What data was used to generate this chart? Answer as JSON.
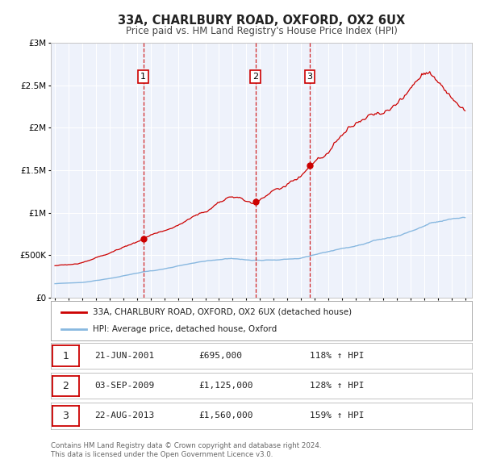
{
  "title": "33A, CHARLBURY ROAD, OXFORD, OX2 6UX",
  "subtitle": "Price paid vs. HM Land Registry's House Price Index (HPI)",
  "xlim": [
    1994.7,
    2025.5
  ],
  "ylim": [
    0,
    3000000
  ],
  "yticks": [
    0,
    500000,
    1000000,
    1500000,
    2000000,
    2500000,
    3000000
  ],
  "ytick_labels": [
    "£0",
    "£500K",
    "£1M",
    "£1.5M",
    "£2M",
    "£2.5M",
    "£3M"
  ],
  "xticks": [
    1995,
    1996,
    1997,
    1998,
    1999,
    2000,
    2001,
    2002,
    2003,
    2004,
    2005,
    2006,
    2007,
    2008,
    2009,
    2010,
    2011,
    2012,
    2013,
    2014,
    2015,
    2016,
    2017,
    2018,
    2019,
    2020,
    2021,
    2022,
    2023,
    2024,
    2025
  ],
  "bg_color": "#eef2fb",
  "grid_color": "#ffffff",
  "red_line_color": "#cc0000",
  "blue_line_color": "#88b8e0",
  "vline_color": "#cc0000",
  "marker_color": "#cc0000",
  "label_border_color": "#cc0000",
  "transactions": [
    {
      "num": 1,
      "year": 2001.47,
      "price": 695000,
      "label": "21-JUN-2001",
      "amount": "£695,000",
      "hpi_text": "118% ↑ HPI"
    },
    {
      "num": 2,
      "year": 2009.67,
      "price": 1125000,
      "label": "03-SEP-2009",
      "amount": "£1,125,000",
      "hpi_text": "128% ↑ HPI"
    },
    {
      "num": 3,
      "year": 2013.64,
      "price": 1560000,
      "label": "22-AUG-2013",
      "amount": "£1,560,000",
      "hpi_text": "159% ↑ HPI"
    }
  ],
  "legend_line1": "33A, CHARLBURY ROAD, OXFORD, OX2 6UX (detached house)",
  "legend_line2": "HPI: Average price, detached house, Oxford",
  "footer_line1": "Contains HM Land Registry data © Crown copyright and database right 2024.",
  "footer_line2": "This data is licensed under the Open Government Licence v3.0."
}
